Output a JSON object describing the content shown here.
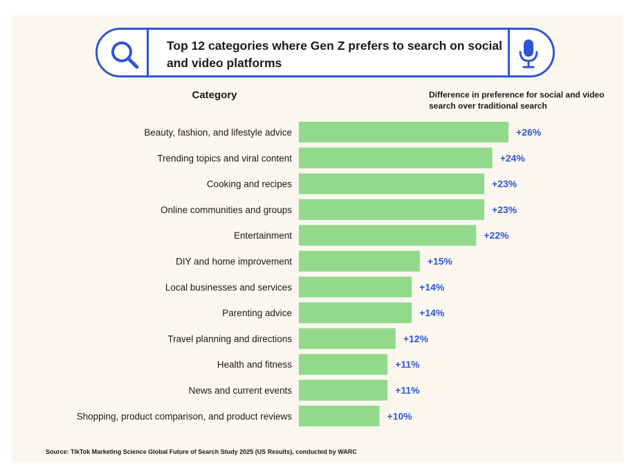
{
  "title": "Top 12 categories where Gen Z prefers to search on social and video platforms",
  "column_headers": {
    "left": "Category",
    "right": "Difference in preference for social and video search over traditional search"
  },
  "source": "Source: TikTok Marketing Science Global Future of Search Study 2025 (US Results), conducted by WARC",
  "colors": {
    "bar": "#93d98b",
    "value_text": "#2d55d6",
    "search_bar_border": "#2d55d6",
    "card_background": "#fbf7ef"
  },
  "icons": [
    "search-icon",
    "mic-icon"
  ],
  "chart_data": {
    "type": "bar",
    "orientation": "horizontal",
    "categories": [
      "Beauty, fashion, and lifestyle advice",
      "Trending topics and viral content",
      "Cooking and recipes",
      "Online communities and groups",
      "Entertainment",
      "DIY and home improvement",
      "Local businesses and services",
      "Parenting advice",
      "Travel planning and directions",
      "Health and fitness",
      "News and current events",
      "Shopping, product comparison, and product reviews"
    ],
    "values": [
      26,
      24,
      23,
      23,
      22,
      15,
      14,
      14,
      12,
      11,
      11,
      10
    ],
    "value_labels": [
      "+26%",
      "+24%",
      "+23%",
      "+23%",
      "+22%",
      "+15%",
      "+14%",
      "+14%",
      "+12%",
      "+11%",
      "+11%",
      "+10%"
    ],
    "unit": "%",
    "xlim": [
      0,
      26
    ],
    "grid": false,
    "legend": "none"
  }
}
